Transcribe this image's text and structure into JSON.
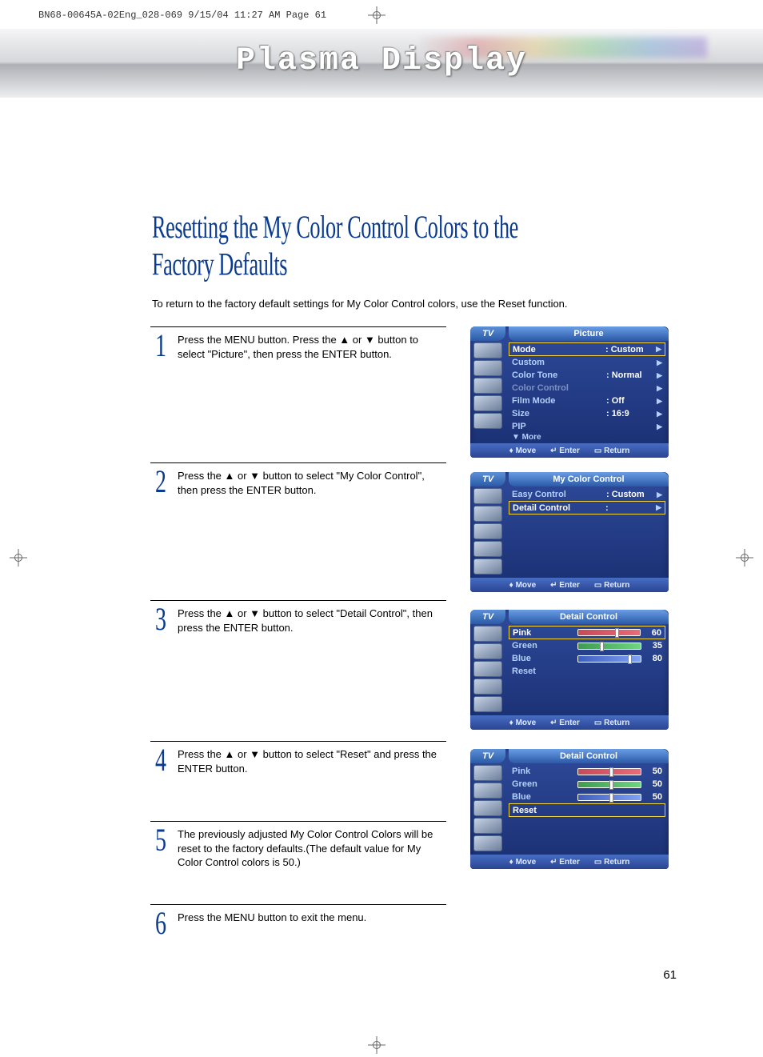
{
  "meta_header": "BN68-00645A-02Eng_028-069  9/15/04  11:27 AM  Page 61",
  "banner_title": "Plasma Display",
  "page_title": "Resetting the My Color Control Colors to the Factory Defaults",
  "intro_text": "To return to the factory default settings for My Color Control colors, use the Reset function.",
  "steps": [
    {
      "num": "1",
      "text": "Press the MENU button. Press the ▲ or ▼ button to select \"Picture\", then press the ENTER button."
    },
    {
      "num": "2",
      "text": "Press the ▲ or ▼ button to select \"My Color Control\", then press the ENTER button."
    },
    {
      "num": "3",
      "text": "Press the ▲ or ▼ button to select \"Detail Control\", then press the ENTER button."
    },
    {
      "num": "4",
      "text": "Press the ▲ or ▼ button to select \"Reset\" and press the ENTER button."
    },
    {
      "num": "5",
      "text": "The previously adjusted My Color Control Colors will be reset to the factory defaults.(The default value for My Color Control colors is 50.)"
    },
    {
      "num": "6",
      "text": "Press the MENU button to exit the menu."
    }
  ],
  "osd_tv_label": "TV",
  "osd_foot": {
    "move": "Move",
    "enter": "Enter",
    "return": "Return"
  },
  "osd1": {
    "title": "Picture",
    "rows": [
      {
        "label": "Mode",
        "val": ":  Custom",
        "hl": true
      },
      {
        "label": "Custom",
        "val": ""
      },
      {
        "label": "Color Tone",
        "val": ":  Normal"
      },
      {
        "label": "Color Control",
        "val": "",
        "dim": true
      },
      {
        "label": "Film Mode",
        "val": ":  Off"
      },
      {
        "label": "Size",
        "val": ":  16:9"
      },
      {
        "label": "PIP",
        "val": ""
      }
    ],
    "more": "▼ More"
  },
  "osd2": {
    "title": "My Color Control",
    "rows": [
      {
        "label": "Easy Control",
        "val": ":  Custom"
      },
      {
        "label": "Detail Control",
        "val": ":",
        "hl": true
      }
    ]
  },
  "osd3": {
    "title": "Detail Control",
    "rows": [
      {
        "label": "Pink",
        "val": 60,
        "color_from": "#c64a5a",
        "color_to": "#e86b7b",
        "hl": true
      },
      {
        "label": "Green",
        "val": 35,
        "color_from": "#3f9a52",
        "color_to": "#6fd67f"
      },
      {
        "label": "Blue",
        "val": 80,
        "color_from": "#3f5fc0",
        "color_to": "#7fa2f2"
      },
      {
        "label": "Reset"
      }
    ]
  },
  "osd4": {
    "title": "Detail Control",
    "rows": [
      {
        "label": "Pink",
        "val": 50,
        "color_from": "#c64a5a",
        "color_to": "#e86b7b"
      },
      {
        "label": "Green",
        "val": 50,
        "color_from": "#3f9a52",
        "color_to": "#6fd67f"
      },
      {
        "label": "Blue",
        "val": 50,
        "color_from": "#3f5fc0",
        "color_to": "#7fa2f2"
      },
      {
        "label": "Reset",
        "hl": true
      }
    ]
  },
  "page_number": "61",
  "colors": {
    "title_blue": "#0a3b8f",
    "osd_bg_top": "#2e4a9a",
    "osd_bg_bot": "#1a2f72",
    "highlight": "#f7d63c"
  }
}
